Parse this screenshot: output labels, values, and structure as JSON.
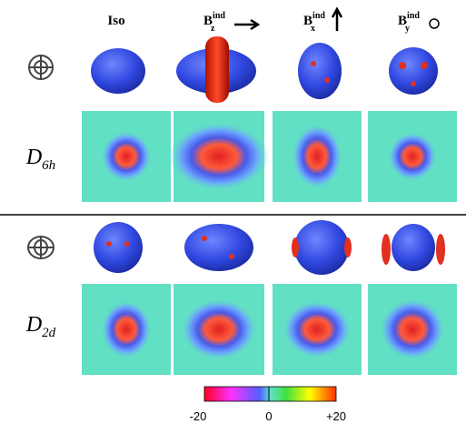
{
  "columns": [
    {
      "base": "Iso"
    },
    {
      "base": "B",
      "sup": "ind",
      "sub": "z"
    },
    {
      "base": "B",
      "sup": "ind",
      "sub": "x"
    },
    {
      "base": "B",
      "sup": "ind",
      "sub": "y"
    }
  ],
  "rows": [
    {
      "base": "D",
      "sub": "6h"
    },
    {
      "base": "D",
      "sub": "2d"
    }
  ],
  "colorbar": {
    "labels": [
      "-20",
      "0",
      "+20"
    ]
  }
}
